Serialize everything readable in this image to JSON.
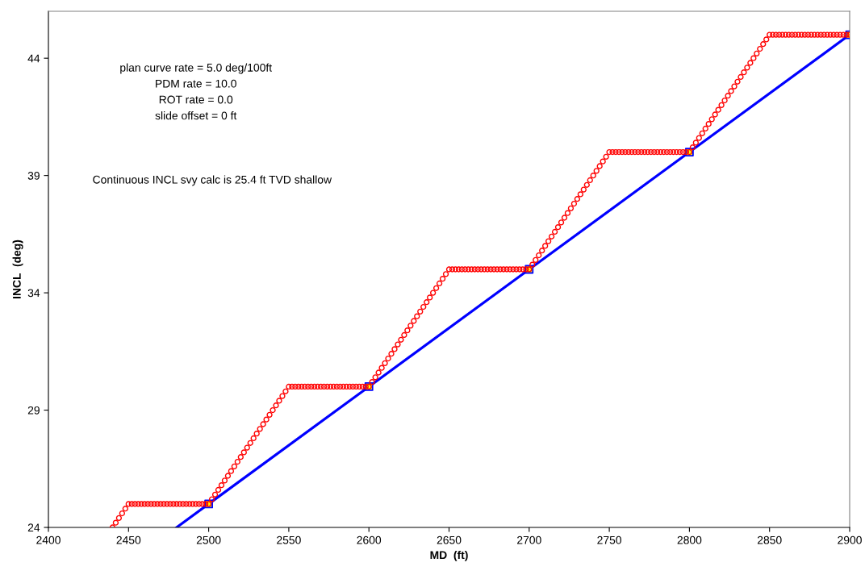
{
  "chart_data": {
    "type": "line",
    "xlabel": "MD  (ft)",
    "ylabel": "INCL  (deg)",
    "xlim": [
      2400,
      2900
    ],
    "ylim": [
      24,
      46
    ],
    "xticks": [
      2400,
      2450,
      2500,
      2550,
      2600,
      2650,
      2700,
      2750,
      2800,
      2850,
      2900
    ],
    "yticks": [
      24,
      29,
      34,
      39,
      44
    ],
    "grid": false,
    "annotations": [
      "plan curve rate = 5.0 deg/100ft",
      "PDM rate = 10.0",
      "ROT rate = 0.0",
      "slide offset = 0 ft",
      "Continuous INCL svy calc is 25.4 ft TVD shallow"
    ],
    "series": [
      {
        "type": "scatter",
        "marker": "circle",
        "color": "#ff0000",
        "x": [
          2440,
          2442,
          2444,
          2446,
          2448,
          2450,
          2452,
          2454,
          2456,
          2458,
          2460,
          2462,
          2464,
          2466,
          2468,
          2470,
          2472,
          2474,
          2476,
          2478,
          2480,
          2482,
          2484,
          2486,
          2488,
          2490,
          2492,
          2494,
          2496,
          2498,
          2500,
          2502,
          2504,
          2506,
          2508,
          2510,
          2512,
          2514,
          2516,
          2518,
          2520,
          2522,
          2524,
          2526,
          2528,
          2530,
          2532,
          2534,
          2536,
          2538,
          2540,
          2542,
          2544,
          2546,
          2548,
          2550,
          2552,
          2554,
          2556,
          2558,
          2560,
          2562,
          2564,
          2566,
          2568,
          2570,
          2572,
          2574,
          2576,
          2578,
          2580,
          2582,
          2584,
          2586,
          2588,
          2590,
          2592,
          2594,
          2596,
          2598,
          2600,
          2602,
          2604,
          2606,
          2608,
          2610,
          2612,
          2614,
          2616,
          2618,
          2620,
          2622,
          2624,
          2626,
          2628,
          2630,
          2632,
          2634,
          2636,
          2638,
          2640,
          2642,
          2644,
          2646,
          2648,
          2650,
          2652,
          2654,
          2656,
          2658,
          2660,
          2662,
          2664,
          2666,
          2668,
          2670,
          2672,
          2674,
          2676,
          2678,
          2680,
          2682,
          2684,
          2686,
          2688,
          2690,
          2692,
          2694,
          2696,
          2698,
          2700,
          2702,
          2704,
          2706,
          2708,
          2710,
          2712,
          2714,
          2716,
          2718,
          2720,
          2722,
          2724,
          2726,
          2728,
          2730,
          2732,
          2734,
          2736,
          2738,
          2740,
          2742,
          2744,
          2746,
          2748,
          2750,
          2752,
          2754,
          2756,
          2758,
          2760,
          2762,
          2764,
          2766,
          2768,
          2770,
          2772,
          2774,
          2776,
          2778,
          2780,
          2782,
          2784,
          2786,
          2788,
          2790,
          2792,
          2794,
          2796,
          2798,
          2800,
          2802,
          2804,
          2806,
          2808,
          2810,
          2812,
          2814,
          2816,
          2818,
          2820,
          2822,
          2824,
          2826,
          2828,
          2830,
          2832,
          2834,
          2836,
          2838,
          2840,
          2842,
          2844,
          2846,
          2848,
          2850,
          2852,
          2854,
          2856,
          2858,
          2860,
          2862,
          2864,
          2866,
          2868,
          2870,
          2872,
          2874,
          2876,
          2878,
          2880,
          2882,
          2884,
          2886,
          2888,
          2890,
          2892,
          2894,
          2896,
          2898,
          2900
        ],
        "values": [
          24,
          24.2,
          24.4,
          24.6,
          24.8,
          25,
          25,
          25,
          25,
          25,
          25,
          25,
          25,
          25,
          25,
          25,
          25,
          25,
          25,
          25,
          25,
          25,
          25,
          25,
          25,
          25,
          25,
          25,
          25,
          25,
          25,
          25.2,
          25.4,
          25.6,
          25.8,
          26,
          26.2,
          26.4,
          26.6,
          26.8,
          27,
          27.2,
          27.4,
          27.6,
          27.8,
          28,
          28.2,
          28.4,
          28.6,
          28.8,
          29,
          29.2,
          29.4,
          29.6,
          29.8,
          30,
          30,
          30,
          30,
          30,
          30,
          30,
          30,
          30,
          30,
          30,
          30,
          30,
          30,
          30,
          30,
          30,
          30,
          30,
          30,
          30,
          30,
          30,
          30,
          30,
          30,
          30.2,
          30.4,
          30.6,
          30.8,
          31,
          31.2,
          31.4,
          31.6,
          31.8,
          32,
          32.2,
          32.4,
          32.6,
          32.8,
          33,
          33.2,
          33.4,
          33.6,
          33.8,
          34,
          34.2,
          34.4,
          34.6,
          34.8,
          35,
          35,
          35,
          35,
          35,
          35,
          35,
          35,
          35,
          35,
          35,
          35,
          35,
          35,
          35,
          35,
          35,
          35,
          35,
          35,
          35,
          35,
          35,
          35,
          35,
          35,
          35.2,
          35.4,
          35.6,
          35.8,
          36,
          36.2,
          36.4,
          36.6,
          36.8,
          37,
          37.2,
          37.4,
          37.6,
          37.8,
          38,
          38.2,
          38.4,
          38.6,
          38.8,
          39,
          39.2,
          39.4,
          39.6,
          39.8,
          40,
          40,
          40,
          40,
          40,
          40,
          40,
          40,
          40,
          40,
          40,
          40,
          40,
          40,
          40,
          40,
          40,
          40,
          40,
          40,
          40,
          40,
          40,
          40,
          40,
          40,
          40.2,
          40.4,
          40.6,
          40.8,
          41,
          41.2,
          41.4,
          41.6,
          41.8,
          42,
          42.2,
          42.4,
          42.6,
          42.8,
          43,
          43.2,
          43.4,
          43.6,
          43.8,
          44,
          44.2,
          44.4,
          44.6,
          44.8,
          45,
          45,
          45,
          45,
          45,
          45,
          45,
          45,
          45,
          45,
          45,
          45,
          45,
          45,
          45,
          45,
          45,
          45,
          45,
          45,
          45,
          45,
          45,
          45,
          45,
          45
        ]
      },
      {
        "marker": "none",
        "color": "#0000ff",
        "x": [
          2480,
          2500,
          2600,
          2700,
          2800,
          2900
        ],
        "values": [
          24,
          25,
          30,
          35,
          40,
          45
        ]
      },
      {
        "type": "scatter",
        "marker": "square",
        "color": "#0000ff",
        "x": [
          2500,
          2600,
          2700,
          2800,
          2900
        ],
        "values": [
          25,
          30,
          35,
          40,
          45
        ]
      }
    ]
  }
}
